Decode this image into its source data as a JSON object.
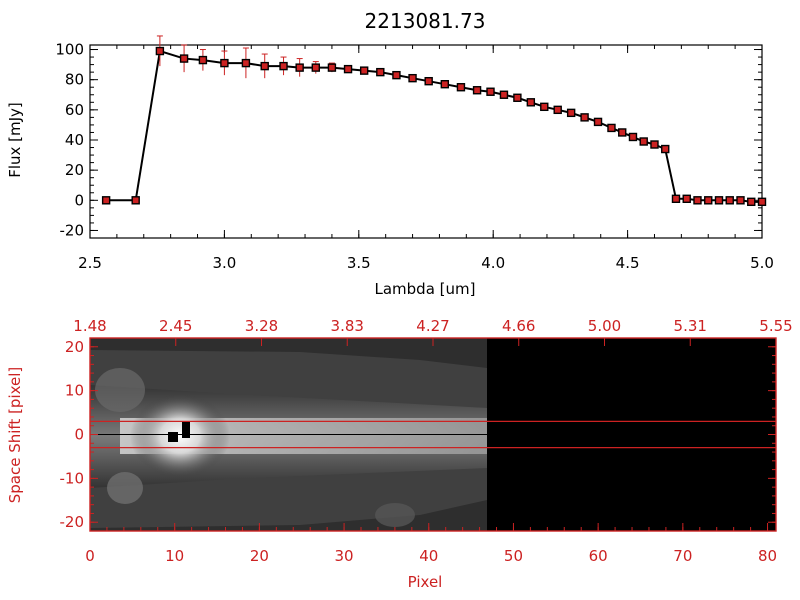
{
  "chart_data": [
    {
      "type": "line",
      "title": "2213081.73",
      "xlabel": "Lambda [um]",
      "ylabel": "Flux [mJy]",
      "xlim": [
        2.5,
        5.0
      ],
      "ylim": [
        -25,
        103
      ],
      "xticks": [
        "2.5",
        "3.0",
        "3.5",
        "4.0",
        "4.5",
        "5.0"
      ],
      "yticks": [
        "-20",
        "0",
        "20",
        "40",
        "60",
        "80",
        "100"
      ],
      "colors": {
        "line": "#000000",
        "marker": "#cc2222",
        "errorbar": "#cc2222",
        "model": "#cc2222"
      },
      "series": [
        {
          "x": [
            2.56,
            2.67,
            2.76,
            2.85,
            2.92,
            3.0,
            3.08,
            3.15,
            3.22,
            3.28,
            3.34,
            3.4,
            3.46,
            3.52,
            3.58,
            3.64,
            3.7,
            3.76,
            3.82,
            3.88,
            3.94,
            3.99,
            4.04,
            4.09,
            4.14,
            4.19,
            4.24,
            4.29,
            4.34,
            4.39,
            4.44,
            4.48,
            4.52,
            4.56,
            4.6,
            4.64,
            4.68,
            4.72,
            4.76,
            4.8,
            4.84,
            4.88,
            4.92,
            4.96,
            5.0
          ],
          "y": [
            0,
            0,
            99,
            94,
            93,
            91,
            91,
            89,
            89,
            88,
            88,
            88,
            87,
            86,
            85,
            83,
            81,
            79,
            77,
            75,
            73,
            72,
            70,
            68,
            65,
            62,
            60,
            58,
            55,
            52,
            48,
            45,
            42,
            39,
            37,
            34,
            1,
            1,
            0,
            0,
            0,
            0,
            0,
            -1,
            -1
          ],
          "yerr": [
            0,
            0,
            10,
            9,
            7,
            8,
            10,
            8,
            6,
            6,
            4,
            3,
            2,
            2,
            2,
            1,
            1,
            1,
            1,
            1,
            1,
            1,
            1,
            1,
            1,
            1,
            1,
            1,
            1,
            1,
            1,
            1,
            1,
            1,
            1,
            1,
            0,
            0,
            0,
            0,
            0,
            0,
            0,
            0,
            0
          ]
        }
      ]
    },
    {
      "type": "heatmap",
      "xlabel": "Pixel",
      "ylabel": "Space Shift [pixel]",
      "xlim": [
        0,
        81
      ],
      "ylim": [
        -22,
        22
      ],
      "xticks": [
        "0",
        "10",
        "20",
        "30",
        "40",
        "50",
        "60",
        "70",
        "80"
      ],
      "yticks": [
        "-20",
        "-10",
        "0",
        "10",
        "20"
      ],
      "top_ticks": [
        "1.48",
        "2.45",
        "3.28",
        "3.83",
        "4.27",
        "4.66",
        "5.00",
        "5.31",
        "5.55"
      ],
      "extraction_window": [
        -3,
        3
      ],
      "data_extent": [
        0,
        47
      ],
      "colors": {
        "axes": "#cc2222",
        "window": "#cc2222",
        "background": "#000000"
      }
    }
  ]
}
